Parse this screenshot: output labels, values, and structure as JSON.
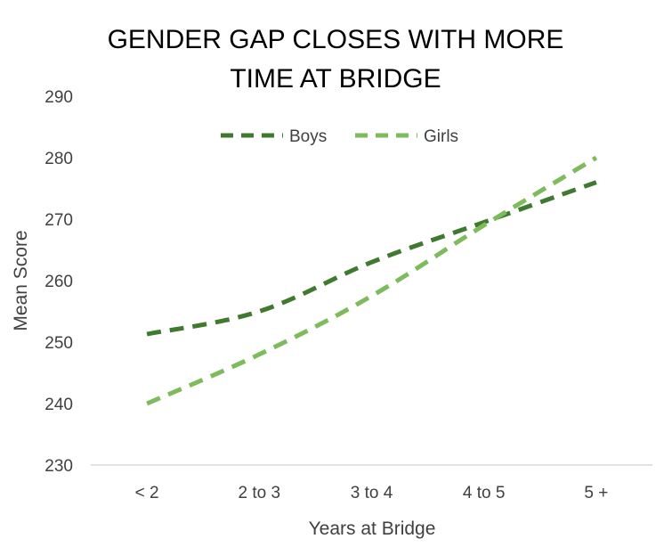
{
  "chart_data": {
    "type": "line",
    "title_lines": [
      "GENDER GAP CLOSES WITH MORE",
      "TIME AT BRIDGE"
    ],
    "xlabel": "Years at Bridge",
    "ylabel": "Mean Score",
    "categories": [
      "< 2",
      "2 to 3",
      "3 to 4",
      "4 to 5",
      "5 +"
    ],
    "ylim": [
      230,
      290
    ],
    "yticks": [
      "230",
      "240",
      "250",
      "260",
      "270",
      "280",
      "290"
    ],
    "grid": false,
    "legend_position": "top-center",
    "series": [
      {
        "name": "Boys",
        "values": [
          251.3,
          255,
          263,
          269.5,
          276
        ],
        "color": "#3f7a30",
        "dash": "dashed"
      },
      {
        "name": "Girls",
        "values": [
          240,
          248,
          257.5,
          269,
          280
        ],
        "color": "#7dbb5c",
        "dash": "dashed"
      }
    ]
  }
}
